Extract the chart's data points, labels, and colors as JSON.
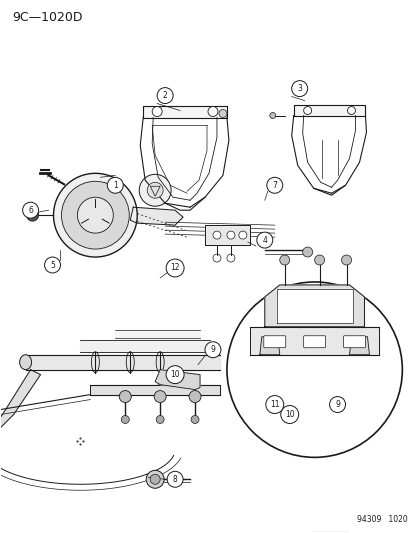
{
  "title": "9C—1020D",
  "background_color": "#ffffff",
  "line_color": "#1a1a1a",
  "text_color": "#1a1a1a",
  "watermark": "94309   1020",
  "fig_width": 4.14,
  "fig_height": 5.33,
  "dpi": 100
}
